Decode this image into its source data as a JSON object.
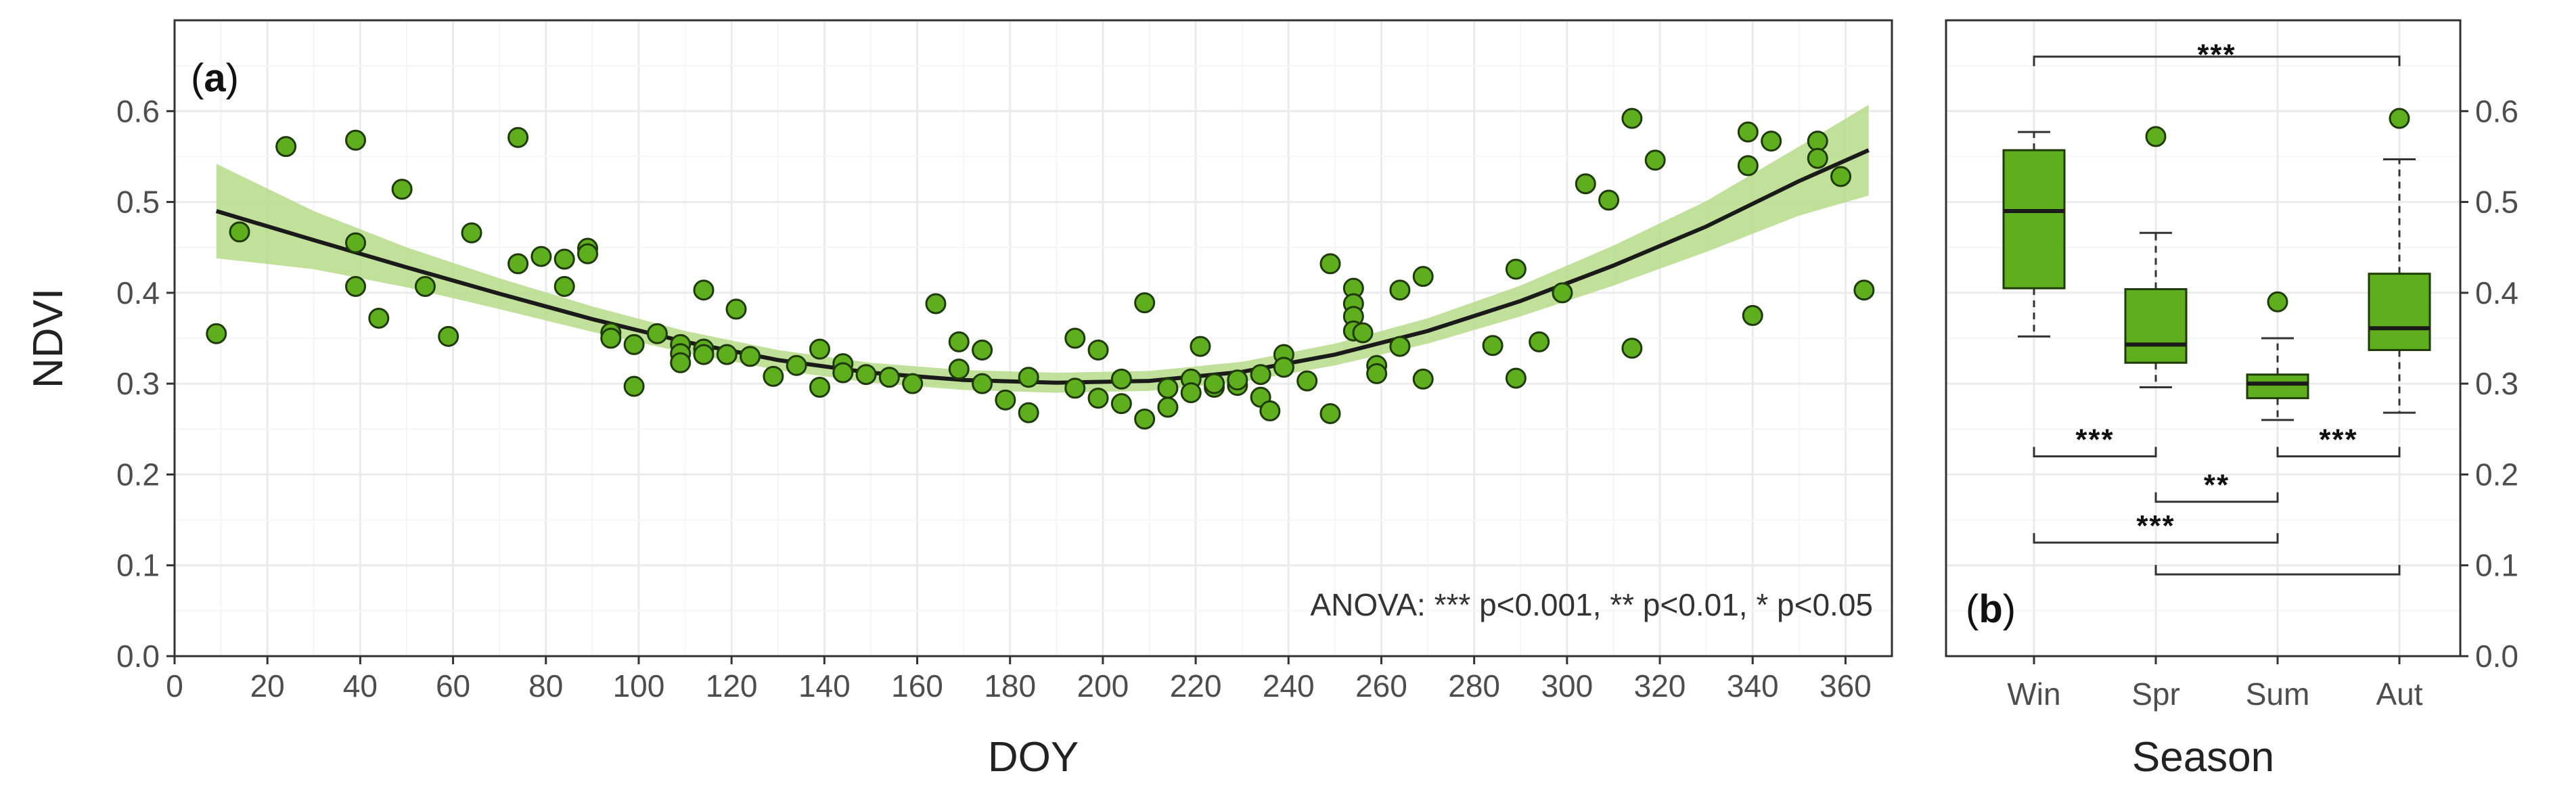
{
  "chart_data": [
    {
      "type": "scatter",
      "panel_label": "a",
      "xlabel": "DOY",
      "ylabel": "NDVI",
      "xlim": [
        0,
        370
      ],
      "ylim": [
        0,
        0.7
      ],
      "xticks": [
        0,
        20,
        40,
        60,
        80,
        100,
        120,
        140,
        160,
        180,
        200,
        220,
        240,
        260,
        280,
        300,
        320,
        340,
        360
      ],
      "yticks": [
        "0.0",
        "0.1",
        "0.2",
        "0.3",
        "0.4",
        "0.5",
        "0.6"
      ],
      "grid": true,
      "annotation": "ANOVA:  *** p<0.001, ** p<0.01, * p<0.05",
      "points": [
        [
          9,
          0.355
        ],
        [
          14,
          0.467
        ],
        [
          24,
          0.561
        ],
        [
          39,
          0.568
        ],
        [
          39,
          0.455
        ],
        [
          39,
          0.407
        ],
        [
          44,
          0.372
        ],
        [
          49,
          0.514
        ],
        [
          54,
          0.407
        ],
        [
          59,
          0.352
        ],
        [
          64,
          0.466
        ],
        [
          74,
          0.571
        ],
        [
          74,
          0.432
        ],
        [
          79,
          0.44
        ],
        [
          84,
          0.437
        ],
        [
          84,
          0.407
        ],
        [
          89,
          0.449
        ],
        [
          89,
          0.443
        ],
        [
          94,
          0.356
        ],
        [
          94,
          0.35
        ],
        [
          99,
          0.343
        ],
        [
          99,
          0.297
        ],
        [
          104,
          0.355
        ],
        [
          109,
          0.343
        ],
        [
          109,
          0.333
        ],
        [
          109,
          0.323
        ],
        [
          114,
          0.403
        ],
        [
          114,
          0.338
        ],
        [
          114,
          0.332
        ],
        [
          119,
          0.332
        ],
        [
          121,
          0.382
        ],
        [
          124,
          0.33
        ],
        [
          129,
          0.308
        ],
        [
          134,
          0.32
        ],
        [
          139,
          0.338
        ],
        [
          139,
          0.296
        ],
        [
          144,
          0.322
        ],
        [
          144,
          0.312
        ],
        [
          149,
          0.31
        ],
        [
          154,
          0.307
        ],
        [
          159,
          0.3
        ],
        [
          164,
          0.388
        ],
        [
          169,
          0.316
        ],
        [
          169,
          0.346
        ],
        [
          174,
          0.337
        ],
        [
          174,
          0.3
        ],
        [
          179,
          0.282
        ],
        [
          184,
          0.307
        ],
        [
          184,
          0.268
        ],
        [
          194,
          0.35
        ],
        [
          194,
          0.295
        ],
        [
          199,
          0.337
        ],
        [
          199,
          0.284
        ],
        [
          204,
          0.305
        ],
        [
          204,
          0.278
        ],
        [
          209,
          0.389
        ],
        [
          209,
          0.261
        ],
        [
          214,
          0.295
        ],
        [
          214,
          0.274
        ],
        [
          219,
          0.305
        ],
        [
          219,
          0.29
        ],
        [
          221,
          0.341
        ],
        [
          224,
          0.296
        ],
        [
          224,
          0.3
        ],
        [
          229,
          0.298
        ],
        [
          229,
          0.304
        ],
        [
          234,
          0.31
        ],
        [
          234,
          0.285
        ],
        [
          236,
          0.27
        ],
        [
          239,
          0.332
        ],
        [
          239,
          0.318
        ],
        [
          244,
          0.303
        ],
        [
          249,
          0.267
        ],
        [
          249,
          0.432
        ],
        [
          254,
          0.405
        ],
        [
          254,
          0.388
        ],
        [
          254,
          0.374
        ],
        [
          254,
          0.358
        ],
        [
          256,
          0.356
        ],
        [
          259,
          0.32
        ],
        [
          259,
          0.311
        ],
        [
          264,
          0.403
        ],
        [
          264,
          0.341
        ],
        [
          269,
          0.418
        ],
        [
          269,
          0.305
        ],
        [
          284,
          0.342
        ],
        [
          289,
          0.426
        ],
        [
          289,
          0.306
        ],
        [
          294,
          0.346
        ],
        [
          299,
          0.4
        ],
        [
          304,
          0.52
        ],
        [
          309,
          0.502
        ],
        [
          314,
          0.592
        ],
        [
          314,
          0.339
        ],
        [
          319,
          0.546
        ],
        [
          339,
          0.577
        ],
        [
          339,
          0.54
        ],
        [
          340,
          0.375
        ],
        [
          344,
          0.567
        ],
        [
          354,
          0.567
        ],
        [
          354,
          0.548
        ],
        [
          359,
          0.528
        ],
        [
          364,
          0.403
        ]
      ],
      "fit": {
        "type": "quadratic",
        "x": [
          9,
          30,
          50,
          70,
          90,
          110,
          130,
          150,
          170,
          190,
          210,
          230,
          250,
          270,
          290,
          310,
          330,
          350,
          365
        ],
        "y": [
          0.49,
          0.458,
          0.428,
          0.399,
          0.371,
          0.346,
          0.326,
          0.312,
          0.304,
          0.301,
          0.303,
          0.313,
          0.332,
          0.358,
          0.391,
          0.43,
          0.473,
          0.523,
          0.557
        ],
        "ci_half_width": [
          0.052,
          0.032,
          0.022,
          0.017,
          0.014,
          0.012,
          0.011,
          0.011,
          0.011,
          0.011,
          0.011,
          0.011,
          0.012,
          0.014,
          0.017,
          0.022,
          0.028,
          0.038,
          0.05
        ]
      },
      "colors": {
        "point_fill": "#5fae1d",
        "point_stroke": "#1f3b05",
        "ribbon": "#b6dc8a",
        "line": "#1a1a1a"
      }
    },
    {
      "type": "box",
      "panel_label": "b",
      "xlabel": "Season",
      "ylim": [
        0,
        0.7
      ],
      "yticks": [
        "0.0",
        "0.1",
        "0.2",
        "0.3",
        "0.4",
        "0.5",
        "0.6"
      ],
      "categories": [
        "Win",
        "Spr",
        "Sum",
        "Aut"
      ],
      "boxes": [
        {
          "name": "Win",
          "min": 0.352,
          "q1": 0.405,
          "median": 0.49,
          "q3": 0.557,
          "max": 0.577,
          "outliers": []
        },
        {
          "name": "Spr",
          "min": 0.296,
          "q1": 0.323,
          "median": 0.343,
          "q3": 0.404,
          "max": 0.466,
          "outliers": [
            0.572
          ]
        },
        {
          "name": "Sum",
          "min": 0.26,
          "q1": 0.284,
          "median": 0.3,
          "q3": 0.31,
          "max": 0.35,
          "outliers": [
            0.39
          ]
        },
        {
          "name": "Aut",
          "min": 0.268,
          "q1": 0.337,
          "median": 0.361,
          "q3": 0.421,
          "max": 0.547,
          "outliers": [
            0.592
          ]
        }
      ],
      "significance": [
        {
          "from": "Win",
          "to": "Aut",
          "label": "***",
          "y": 0.66
        },
        {
          "from": "Win",
          "to": "Spr",
          "label": "***",
          "y": 0.22
        },
        {
          "from": "Spr",
          "to": "Sum",
          "label": "**",
          "y": 0.17
        },
        {
          "from": "Sum",
          "to": "Aut",
          "label": "***",
          "y": 0.22
        },
        {
          "from": "Win",
          "to": "Sum",
          "label": "***",
          "y": 0.125
        },
        {
          "from": "Spr",
          "to": "Aut",
          "label": "",
          "y": 0.09
        }
      ],
      "colors": {
        "box_fill": "#5fae1d",
        "box_stroke": "#1f3b05",
        "median": "#1a1a1a",
        "outlier": "#5fae1d"
      }
    }
  ]
}
